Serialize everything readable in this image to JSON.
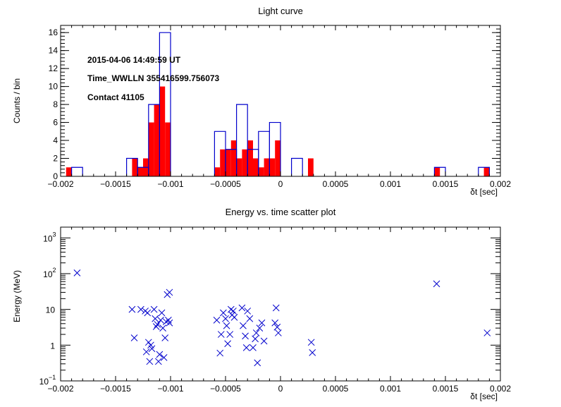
{
  "chart_data": [
    {
      "type": "bar",
      "title": "Light curve",
      "xlabel": "δt [sec]",
      "ylabel": "Counts / bin",
      "xlim": [
        -0.002,
        0.002
      ],
      "ylim": [
        0,
        16.8
      ],
      "bin_width": 0.0001,
      "x_ticks": [
        -0.002,
        -0.0015,
        -0.001,
        -0.0005,
        0,
        0.0005,
        0.001,
        0.0015,
        0.002
      ],
      "x_tick_labels": [
        "−0.002",
        "−0.0015",
        "−0.001",
        "−0.0005",
        "0",
        "0.0005",
        "0.001",
        "0.0015",
        "0.002"
      ],
      "y_ticks": [
        0,
        2,
        4,
        6,
        8,
        10,
        12,
        14,
        16
      ],
      "y_tick_labels": [
        "0",
        "2",
        "4",
        "6",
        "8",
        "10",
        "12",
        "14",
        "16"
      ],
      "annotations": [
        "2015-04-06 14:49:59 UT",
        "Time_WWLLN 355416599.756073",
        "Contact 41105"
      ],
      "grid": false,
      "series": [
        {
          "style": "step",
          "color": "#0000cc",
          "bins": [
            {
              "x": -0.0019,
              "value": 1
            },
            {
              "x": -0.0014,
              "value": 2
            },
            {
              "x": -0.0013,
              "value": 1
            },
            {
              "x": -0.0012,
              "value": 8
            },
            {
              "x": -0.0011,
              "value": 16
            },
            {
              "x": -0.0006,
              "value": 5
            },
            {
              "x": -0.0005,
              "value": 3
            },
            {
              "x": -0.0004,
              "value": 8
            },
            {
              "x": -0.0003,
              "value": 3
            },
            {
              "x": -0.0002,
              "value": 5
            },
            {
              "x": -0.0001,
              "value": 6
            },
            {
              "x": 0.0001,
              "value": 2
            },
            {
              "x": 0.0014,
              "value": 1
            },
            {
              "x": 0.0018,
              "value": 1
            }
          ]
        },
        {
          "style": "filled",
          "color": "#ff0000",
          "bins": [
            {
              "x": -0.00195,
              "value": 1
            },
            {
              "x": -0.00135,
              "value": 2
            },
            {
              "x": -0.0013,
              "value": 1
            },
            {
              "x": -0.00125,
              "value": 2
            },
            {
              "x": -0.0012,
              "value": 6
            },
            {
              "x": -0.00115,
              "value": 8
            },
            {
              "x": -0.0011,
              "value": 10
            },
            {
              "x": -0.00105,
              "value": 6
            },
            {
              "x": -0.0006,
              "value": 1
            },
            {
              "x": -0.00055,
              "value": 3
            },
            {
              "x": -0.0005,
              "value": 3
            },
            {
              "x": -0.00045,
              "value": 4
            },
            {
              "x": -0.0004,
              "value": 2
            },
            {
              "x": -0.00035,
              "value": 3
            },
            {
              "x": -0.0003,
              "value": 4
            },
            {
              "x": -0.00025,
              "value": 2
            },
            {
              "x": -0.0002,
              "value": 1
            },
            {
              "x": -0.00015,
              "value": 2
            },
            {
              "x": -0.0001,
              "value": 2
            },
            {
              "x": -5e-05,
              "value": 4
            },
            {
              "x": 0.00025,
              "value": 2
            },
            {
              "x": 0.0014,
              "value": 1
            },
            {
              "x": 0.00185,
              "value": 1
            }
          ]
        }
      ]
    },
    {
      "type": "scatter",
      "title": "Energy vs. time scatter plot",
      "xlabel": "δt [sec]",
      "ylabel": "Energy (MeV)",
      "xlim": [
        -0.002,
        0.002
      ],
      "ylim": [
        0.1,
        2000
      ],
      "yscale": "log",
      "marker": "x",
      "marker_color": "#0000cc",
      "x_ticks": [
        -0.002,
        -0.0015,
        -0.001,
        -0.0005,
        0,
        0.0005,
        0.001,
        0.0015,
        0.002
      ],
      "x_tick_labels": [
        "−0.002",
        "−0.0015",
        "−0.001",
        "−0.0005",
        "0",
        "0.0005",
        "0.001",
        "0.0015",
        "0.002"
      ],
      "y_ticks": [
        0.1,
        1,
        10,
        100,
        1000
      ],
      "y_tick_labels": [
        {
          "base": "10",
          "exp": "−1"
        },
        {
          "base": "1",
          "exp": ""
        },
        {
          "base": "10",
          "exp": ""
        },
        {
          "base": "10",
          "exp": "2"
        },
        {
          "base": "10",
          "exp": "3"
        }
      ],
      "grid": false,
      "points": [
        {
          "x": -0.00185,
          "y": 105
        },
        {
          "x": -0.00135,
          "y": 10
        },
        {
          "x": -0.00133,
          "y": 1.6
        },
        {
          "x": -0.00127,
          "y": 10
        },
        {
          "x": -0.00123,
          "y": 9
        },
        {
          "x": -0.00122,
          "y": 0.65
        },
        {
          "x": -0.00121,
          "y": 8
        },
        {
          "x": -0.0012,
          "y": 1.2
        },
        {
          "x": -0.00119,
          "y": 0.35
        },
        {
          "x": -0.00118,
          "y": 1.0
        },
        {
          "x": -0.00117,
          "y": 0.8
        },
        {
          "x": -0.00115,
          "y": 10
        },
        {
          "x": -0.00114,
          "y": 5.5
        },
        {
          "x": -0.00113,
          "y": 3.3
        },
        {
          "x": -0.00112,
          "y": 3.8
        },
        {
          "x": -0.00111,
          "y": 0.35
        },
        {
          "x": -0.0011,
          "y": 0.55
        },
        {
          "x": -0.00109,
          "y": 5
        },
        {
          "x": -0.00108,
          "y": 8
        },
        {
          "x": -0.00107,
          "y": 3
        },
        {
          "x": -0.00106,
          "y": 0.45
        },
        {
          "x": -0.00105,
          "y": 1.6
        },
        {
          "x": -0.00104,
          "y": 4.5
        },
        {
          "x": -0.00103,
          "y": 26
        },
        {
          "x": -0.00102,
          "y": 5
        },
        {
          "x": -0.00101,
          "y": 4.2
        },
        {
          "x": -0.00101,
          "y": 30
        },
        {
          "x": -0.00058,
          "y": 5
        },
        {
          "x": -0.00055,
          "y": 0.6
        },
        {
          "x": -0.00054,
          "y": 2
        },
        {
          "x": -0.00052,
          "y": 8
        },
        {
          "x": -0.0005,
          "y": 5.5
        },
        {
          "x": -0.00049,
          "y": 3.5
        },
        {
          "x": -0.00048,
          "y": 1.1
        },
        {
          "x": -0.00046,
          "y": 2
        },
        {
          "x": -0.00045,
          "y": 10
        },
        {
          "x": -0.00044,
          "y": 7
        },
        {
          "x": -0.00043,
          "y": 9
        },
        {
          "x": -0.00042,
          "y": 6
        },
        {
          "x": -0.00035,
          "y": 11
        },
        {
          "x": -0.00034,
          "y": 3.5
        },
        {
          "x": -0.00032,
          "y": 1.8
        },
        {
          "x": -0.00031,
          "y": 0.85
        },
        {
          "x": -0.0003,
          "y": 9
        },
        {
          "x": -0.00028,
          "y": 5.5
        },
        {
          "x": -0.00025,
          "y": 0.85
        },
        {
          "x": -0.00023,
          "y": 1.5
        },
        {
          "x": -0.00022,
          "y": 2.2
        },
        {
          "x": -0.00021,
          "y": 0.32
        },
        {
          "x": -0.00019,
          "y": 3
        },
        {
          "x": -0.00017,
          "y": 4.2
        },
        {
          "x": -0.00015,
          "y": 1.3
        },
        {
          "x": -5e-05,
          "y": 4.2
        },
        {
          "x": -4e-05,
          "y": 11
        },
        {
          "x": -3e-05,
          "y": 3.2
        },
        {
          "x": -2e-05,
          "y": 2.2
        },
        {
          "x": 0.00028,
          "y": 1.2
        },
        {
          "x": 0.00029,
          "y": 0.62
        },
        {
          "x": 0.00142,
          "y": 52
        },
        {
          "x": 0.00188,
          "y": 2.2
        }
      ]
    }
  ]
}
